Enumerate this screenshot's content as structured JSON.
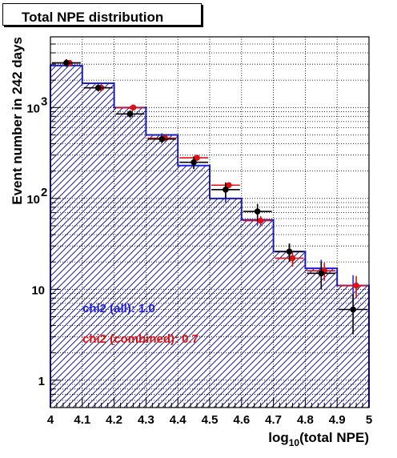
{
  "title": "Total NPE distribution",
  "chart_data": {
    "type": "histogram",
    "title": "Total NPE distribution",
    "xlabel": {
      "prefix": "log",
      "subscript": "10",
      "suffix": "(total NPE)"
    },
    "ylabel": "Event number in 242 days",
    "xlim": [
      4,
      5
    ],
    "ylim": [
      0.5,
      6000
    ],
    "y_scale": "log",
    "grid": true,
    "x_ticks": [
      "4",
      "4.1",
      "4.2",
      "4.3",
      "4.4",
      "4.5",
      "4.6",
      "4.7",
      "4.8",
      "4.9",
      "5"
    ],
    "y_ticks": [
      {
        "value": 1,
        "label": "1"
      },
      {
        "value": 10,
        "label": "10"
      },
      {
        "value": 100,
        "label": "10",
        "exp": "2"
      },
      {
        "value": 1000,
        "label": "10",
        "exp": "3"
      }
    ],
    "bin_edges": [
      4,
      4.1,
      4.2,
      4.3,
      4.4,
      4.5,
      4.6,
      4.7,
      4.8,
      4.9,
      5
    ],
    "series": [
      {
        "style": "filled-step",
        "color": "#1f1fe0",
        "values": [
          2900,
          1850,
          1000,
          500,
          230,
          100,
          58,
          26,
          17,
          11
        ]
      },
      {
        "style": "points-xerr",
        "color": "#e01010",
        "values": [
          3100,
          1650,
          1000,
          460,
          280,
          140,
          57,
          22,
          16,
          11
        ]
      },
      {
        "style": "points-xerr",
        "color": "#000000",
        "values": [
          3100,
          1650,
          850,
          450,
          250,
          125,
          72,
          26,
          15,
          6
        ],
        "errors": [
          300,
          150,
          80,
          45,
          40,
          25,
          15,
          6,
          5,
          2.8
        ]
      }
    ],
    "annotations": [
      {
        "text": "chi2 (all): 1.0",
        "color": "#1f1fe0"
      },
      {
        "text": "chi2 (combined): 0.7",
        "color": "#e01010"
      }
    ]
  }
}
